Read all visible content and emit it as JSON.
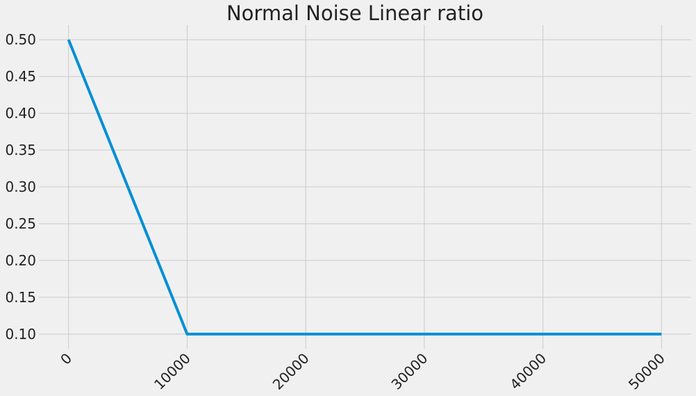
{
  "chart_data": {
    "type": "line",
    "title": "Normal Noise Linear ratio",
    "xlabel": "",
    "ylabel": "",
    "xlim": [
      -2500,
      52500
    ],
    "ylim": [
      0.08,
      0.52
    ],
    "x_ticks": [
      0,
      10000,
      20000,
      30000,
      40000,
      50000
    ],
    "x_tick_labels": [
      "0",
      "10000",
      "20000",
      "30000",
      "40000",
      "50000"
    ],
    "y_ticks": [
      0.1,
      0.15,
      0.2,
      0.25,
      0.3,
      0.35,
      0.4,
      0.45,
      0.5
    ],
    "y_tick_labels": [
      "0.10",
      "0.15",
      "0.20",
      "0.25",
      "0.30",
      "0.35",
      "0.40",
      "0.45",
      "0.50"
    ],
    "grid": true,
    "legend": "none",
    "series": [
      {
        "color": "#008fd5",
        "x": [
          0,
          10000,
          50000
        ],
        "y": [
          0.5,
          0.1,
          0.1
        ]
      }
    ],
    "colors": {
      "background": "#f0f0f0",
      "grid": "#cbcbcb",
      "text": "#222222"
    }
  }
}
